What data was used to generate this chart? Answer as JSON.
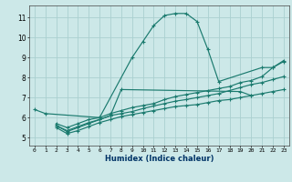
{
  "xlabel": "Humidex (Indice chaleur)",
  "bg_color": "#cce8e8",
  "line_color": "#1a7a6e",
  "grid_color": "#aad0d0",
  "xlim": [
    -0.5,
    23.5
  ],
  "ylim": [
    4.6,
    11.6
  ],
  "xticks": [
    0,
    1,
    2,
    3,
    4,
    5,
    6,
    7,
    8,
    9,
    10,
    11,
    12,
    13,
    14,
    15,
    16,
    17,
    18,
    19,
    20,
    21,
    22,
    23
  ],
  "yticks": [
    5,
    6,
    7,
    8,
    9,
    10,
    11
  ],
  "lines": [
    {
      "x": [
        0,
        1,
        6,
        9,
        10,
        11,
        12,
        13,
        14,
        15,
        16,
        17,
        21,
        22,
        23
      ],
      "y": [
        6.4,
        6.2,
        6.0,
        9.0,
        9.8,
        10.6,
        11.1,
        11.2,
        11.2,
        10.8,
        9.4,
        7.8,
        8.5,
        8.5,
        8.8
      ]
    },
    {
      "x": [
        2,
        3,
        4,
        5,
        6,
        7,
        8,
        19,
        20
      ],
      "y": [
        5.6,
        5.3,
        5.5,
        5.7,
        5.9,
        6.1,
        7.4,
        7.3,
        7.1
      ]
    },
    {
      "x": [
        2,
        3,
        4,
        5,
        6,
        7,
        8,
        9,
        10,
        11,
        12,
        13,
        14,
        15,
        16,
        17,
        18,
        19,
        20,
        21,
        22,
        23
      ],
      "y": [
        5.5,
        5.2,
        5.35,
        5.55,
        5.75,
        5.9,
        6.05,
        6.15,
        6.25,
        6.35,
        6.45,
        6.55,
        6.6,
        6.65,
        6.75,
        6.85,
        6.9,
        7.0,
        7.1,
        7.2,
        7.3,
        7.4
      ]
    },
    {
      "x": [
        2,
        3,
        4,
        5,
        6,
        7,
        8,
        9,
        10,
        11,
        12,
        13,
        14,
        15,
        16,
        17,
        18,
        19,
        20,
        21,
        22,
        23
      ],
      "y": [
        5.6,
        5.35,
        5.55,
        5.75,
        5.9,
        6.1,
        6.2,
        6.3,
        6.45,
        6.58,
        6.7,
        6.82,
        6.9,
        7.0,
        7.1,
        7.2,
        7.35,
        7.5,
        7.65,
        7.75,
        7.9,
        8.05
      ]
    },
    {
      "x": [
        2,
        3,
        4,
        5,
        6,
        7,
        8,
        9,
        10,
        11,
        12,
        13,
        14,
        15,
        16,
        17,
        18,
        19,
        20,
        21,
        22,
        23
      ],
      "y": [
        5.7,
        5.5,
        5.7,
        5.9,
        6.0,
        6.2,
        6.35,
        6.5,
        6.6,
        6.7,
        6.9,
        7.05,
        7.15,
        7.25,
        7.35,
        7.45,
        7.55,
        7.75,
        7.85,
        8.05,
        8.5,
        8.85
      ]
    }
  ]
}
